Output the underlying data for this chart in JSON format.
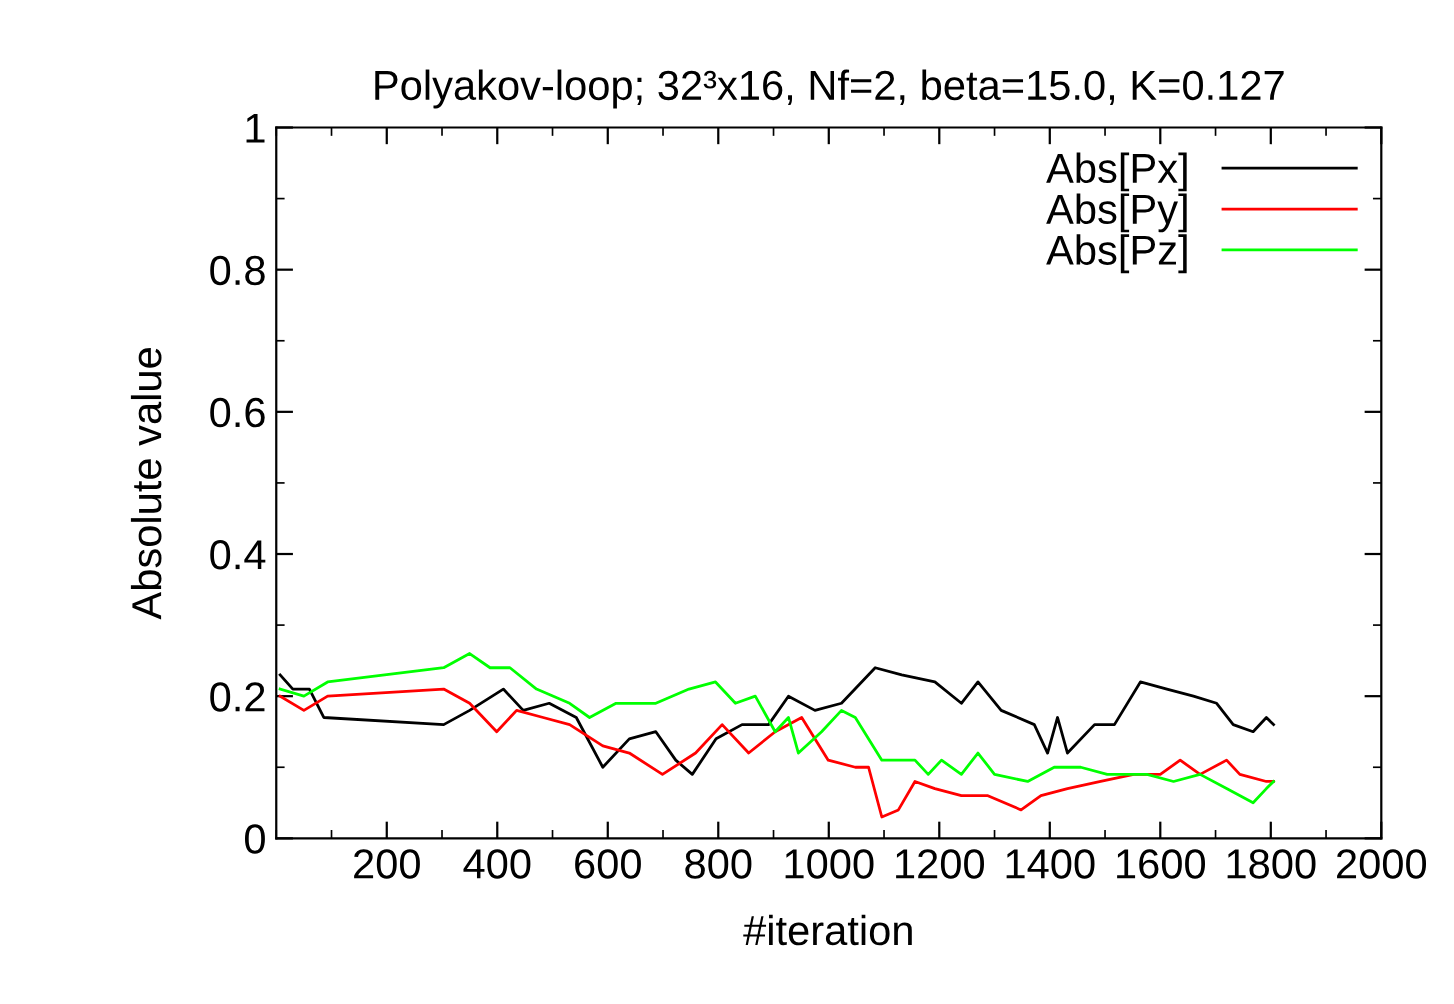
{
  "chart_data": {
    "type": "line",
    "title": "Polyakov-loop; 32³x16, Nf=2, beta=15.0, K=0.127",
    "xlabel": "#iteration",
    "ylabel": "Absolute value",
    "xlim": [
      0,
      2000
    ],
    "xticks": [
      200,
      400,
      600,
      800,
      1000,
      1200,
      1400,
      1600,
      1800,
      2000
    ],
    "ylim": [
      0,
      1
    ],
    "yticks": [
      0,
      0.2,
      0.4,
      0.6,
      0.8,
      1
    ],
    "grid": false,
    "legend": "top right",
    "line_style": "solid",
    "marker": "none",
    "series": [
      {
        "name": "Abs[Px]",
        "color": "#000000",
        "x": [
          7,
          30,
          60,
          86,
          303,
          350,
          411,
          447,
          494,
          543,
          591,
          639,
          687,
          723,
          753,
          796,
          843,
          891,
          927,
          975,
          1023,
          1084,
          1132,
          1192,
          1240,
          1270,
          1312,
          1372,
          1396,
          1414,
          1432,
          1481,
          1517,
          1564,
          1612,
          1660,
          1702,
          1732,
          1768,
          1792,
          1805
        ],
        "values": [
          0.23,
          0.21,
          0.21,
          0.17,
          0.16,
          0.18,
          0.21,
          0.18,
          0.19,
          0.17,
          0.1,
          0.14,
          0.15,
          0.11,
          0.09,
          0.14,
          0.16,
          0.16,
          0.2,
          0.18,
          0.19,
          0.24,
          0.23,
          0.22,
          0.19,
          0.22,
          0.18,
          0.16,
          0.12,
          0.17,
          0.12,
          0.16,
          0.16,
          0.22,
          0.21,
          0.2,
          0.19,
          0.16,
          0.15,
          0.17,
          0.16
        ]
      },
      {
        "name": "Abs[Py]",
        "color": "#ff0000",
        "x": [
          7,
          50,
          93,
          303,
          350,
          399,
          435,
          483,
          531,
          591,
          639,
          699,
          759,
          807,
          855,
          903,
          951,
          999,
          1048,
          1072,
          1096,
          1126,
          1156,
          1192,
          1240,
          1288,
          1348,
          1384,
          1432,
          1492,
          1552,
          1600,
          1636,
          1672,
          1720,
          1744,
          1792,
          1805
        ],
        "values": [
          0.2,
          0.18,
          0.2,
          0.21,
          0.19,
          0.15,
          0.18,
          0.17,
          0.16,
          0.13,
          0.12,
          0.09,
          0.12,
          0.16,
          0.12,
          0.15,
          0.17,
          0.11,
          0.1,
          0.1,
          0.03,
          0.04,
          0.08,
          0.07,
          0.06,
          0.06,
          0.04,
          0.06,
          0.07,
          0.08,
          0.09,
          0.09,
          0.11,
          0.09,
          0.11,
          0.09,
          0.08,
          0.08
        ]
      },
      {
        "name": "Abs[Pz]",
        "color": "#00ff00",
        "x": [
          7,
          50,
          93,
          303,
          350,
          387,
          423,
          471,
          531,
          567,
          615,
          687,
          747,
          795,
          831,
          867,
          903,
          927,
          945,
          987,
          1023,
          1048,
          1096,
          1156,
          1180,
          1204,
          1240,
          1270,
          1300,
          1360,
          1408,
          1456,
          1504,
          1576,
          1624,
          1672,
          1720,
          1768,
          1792,
          1805
        ],
        "values": [
          0.21,
          0.2,
          0.22,
          0.24,
          0.26,
          0.24,
          0.24,
          0.21,
          0.19,
          0.17,
          0.19,
          0.19,
          0.21,
          0.22,
          0.19,
          0.2,
          0.15,
          0.17,
          0.12,
          0.15,
          0.18,
          0.17,
          0.11,
          0.11,
          0.09,
          0.11,
          0.09,
          0.12,
          0.09,
          0.08,
          0.1,
          0.1,
          0.09,
          0.09,
          0.08,
          0.09,
          0.07,
          0.05,
          0.07,
          0.08
        ]
      }
    ]
  }
}
